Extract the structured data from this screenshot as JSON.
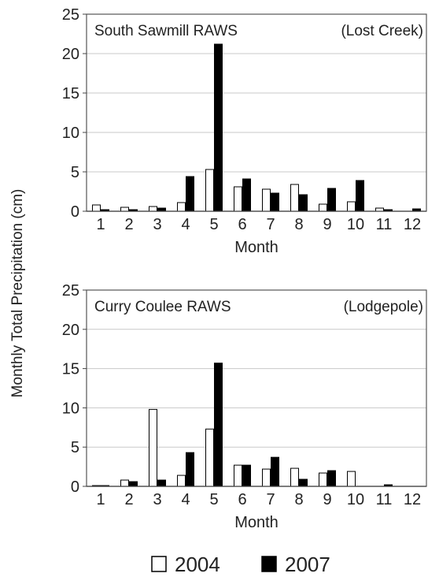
{
  "figure": {
    "ylabel": "Monthly Total Precipitation (cm)",
    "legend": [
      {
        "label": "2004",
        "color": "#ffffff"
      },
      {
        "label": "2007",
        "color": "#000000"
      }
    ]
  },
  "chart_data": [
    {
      "type": "bar",
      "title": "South Sawmill RAWS",
      "subtitle": "(Lost Creek)",
      "xlabel": "Month",
      "ylabel": "Monthly Total Precipitation (cm)",
      "ylim": [
        0,
        25
      ],
      "yticks": [
        0,
        5,
        10,
        15,
        20,
        25
      ],
      "grid": true,
      "categories": [
        "1",
        "2",
        "3",
        "4",
        "5",
        "6",
        "7",
        "8",
        "9",
        "10",
        "11",
        "12"
      ],
      "series": [
        {
          "name": "2004",
          "color": "#ffffff",
          "values": [
            0.8,
            0.5,
            0.6,
            1.1,
            5.3,
            3.1,
            2.8,
            3.4,
            0.9,
            1.2,
            0.4,
            0.0
          ]
        },
        {
          "name": "2007",
          "color": "#000000",
          "values": [
            0.2,
            0.2,
            0.4,
            4.4,
            21.2,
            4.1,
            2.3,
            2.1,
            2.9,
            3.9,
            0.2,
            0.3
          ]
        }
      ]
    },
    {
      "type": "bar",
      "title": "Curry Coulee RAWS",
      "subtitle": "(Lodgepole)",
      "xlabel": "Month",
      "ylabel": "Monthly Total Precipitation (cm)",
      "ylim": [
        0,
        25
      ],
      "yticks": [
        0,
        5,
        10,
        15,
        20,
        25
      ],
      "grid": true,
      "categories": [
        "1",
        "2",
        "3",
        "4",
        "5",
        "6",
        "7",
        "8",
        "9",
        "10",
        "11",
        "12"
      ],
      "series": [
        {
          "name": "2004",
          "color": "#ffffff",
          "values": [
            0.1,
            0.8,
            9.8,
            1.4,
            7.3,
            2.7,
            2.2,
            2.3,
            1.7,
            1.9,
            0.0,
            0.0
          ]
        },
        {
          "name": "2007",
          "color": "#000000",
          "values": [
            0.1,
            0.6,
            0.8,
            4.3,
            15.7,
            2.7,
            3.7,
            0.9,
            2.0,
            0.0,
            0.2,
            0.0
          ]
        }
      ]
    }
  ]
}
